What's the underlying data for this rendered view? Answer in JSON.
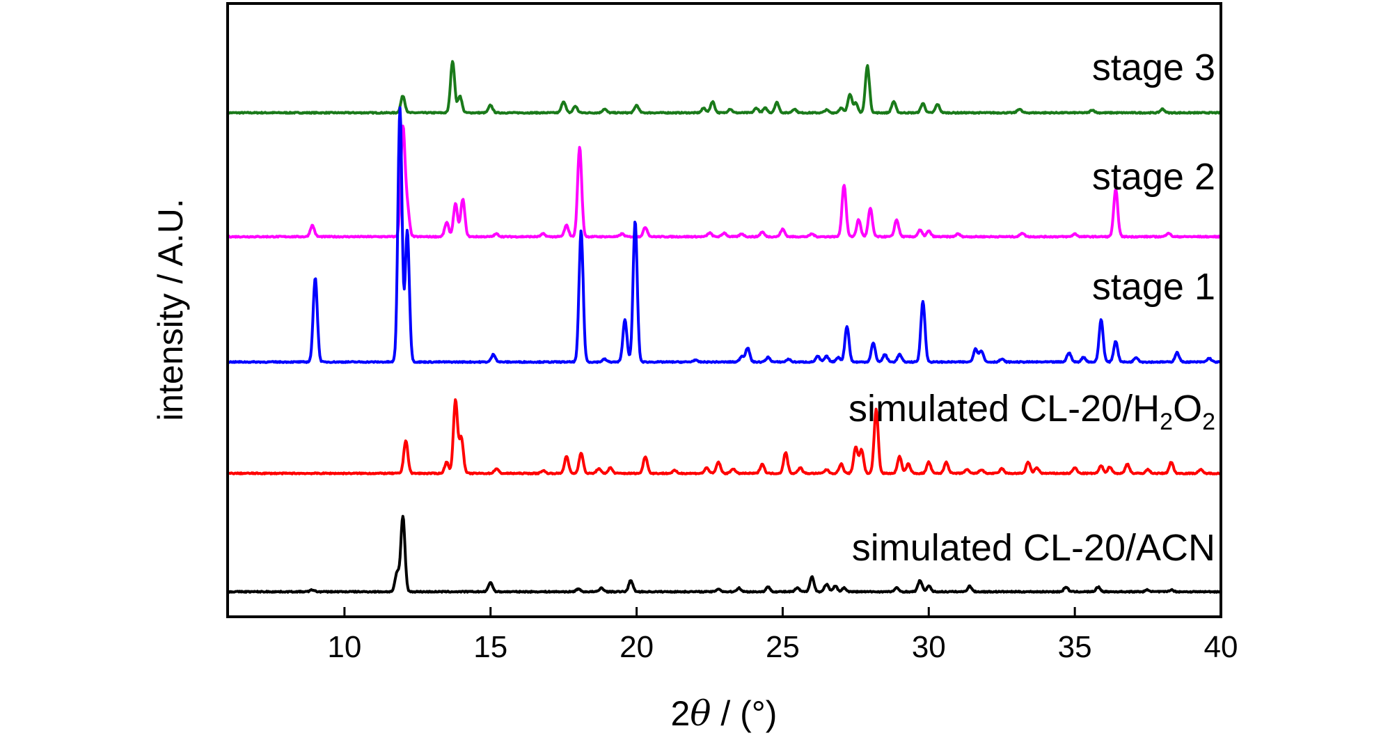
{
  "chart_data": {
    "type": "line",
    "xlabel_main": "2",
    "xlabel_theta": "θ",
    "xlabel_rest": " / (°)",
    "ylabel": "intensity / A.U.",
    "xlim": [
      6,
      40
    ],
    "x_ticks": [
      10,
      15,
      20,
      25,
      30,
      35,
      40
    ],
    "y_ticks_shown": false,
    "grid": false,
    "legend": "inline labels at right, above each trace",
    "series": [
      {
        "name": "stage 3",
        "color": "#1a7a1a",
        "offset": 4,
        "baseline": 0.0,
        "peaks": [
          [
            12.0,
            0.18
          ],
          [
            13.7,
            0.55
          ],
          [
            13.95,
            0.18
          ],
          [
            15.0,
            0.08
          ],
          [
            17.5,
            0.12
          ],
          [
            17.9,
            0.07
          ],
          [
            18.9,
            0.04
          ],
          [
            20.0,
            0.08
          ],
          [
            22.3,
            0.05
          ],
          [
            22.6,
            0.12
          ],
          [
            23.2,
            0.04
          ],
          [
            24.1,
            0.05
          ],
          [
            24.4,
            0.05
          ],
          [
            24.8,
            0.11
          ],
          [
            25.4,
            0.04
          ],
          [
            26.5,
            0.03
          ],
          [
            27.0,
            0.05
          ],
          [
            27.3,
            0.2
          ],
          [
            27.5,
            0.1
          ],
          [
            27.9,
            0.5
          ],
          [
            28.8,
            0.12
          ],
          [
            29.8,
            0.1
          ],
          [
            30.3,
            0.09
          ],
          [
            33.1,
            0.04
          ],
          [
            35.6,
            0.03
          ],
          [
            38.0,
            0.04
          ]
        ]
      },
      {
        "name": "stage 2",
        "color": "#ff00ff",
        "offset": 3,
        "baseline": 0.0,
        "peaks": [
          [
            8.9,
            0.12
          ],
          [
            12.0,
            1.15
          ],
          [
            12.15,
            0.3
          ],
          [
            13.5,
            0.15
          ],
          [
            13.8,
            0.35
          ],
          [
            14.05,
            0.4
          ],
          [
            15.2,
            0.03
          ],
          [
            16.8,
            0.03
          ],
          [
            17.6,
            0.12
          ],
          [
            18.05,
            0.95
          ],
          [
            19.5,
            0.03
          ],
          [
            20.3,
            0.1
          ],
          [
            22.5,
            0.04
          ],
          [
            23.0,
            0.04
          ],
          [
            23.6,
            0.03
          ],
          [
            24.3,
            0.05
          ],
          [
            25.0,
            0.08
          ],
          [
            26.0,
            0.03
          ],
          [
            27.1,
            0.55
          ],
          [
            27.6,
            0.18
          ],
          [
            28.0,
            0.3
          ],
          [
            28.9,
            0.18
          ],
          [
            29.7,
            0.07
          ],
          [
            30.0,
            0.06
          ],
          [
            31.0,
            0.03
          ],
          [
            33.2,
            0.04
          ],
          [
            35.0,
            0.03
          ],
          [
            36.4,
            0.5
          ],
          [
            38.2,
            0.04
          ]
        ]
      },
      {
        "name": "stage 1",
        "color": "#0000ff",
        "offset": 2,
        "baseline": 0.0,
        "peaks": [
          [
            9.0,
            0.9
          ],
          [
            11.9,
            2.7
          ],
          [
            12.15,
            1.4
          ],
          [
            15.1,
            0.08
          ],
          [
            18.1,
            1.4
          ],
          [
            18.9,
            0.03
          ],
          [
            19.6,
            0.45
          ],
          [
            19.95,
            1.5
          ],
          [
            22.0,
            0.02
          ],
          [
            23.6,
            0.06
          ],
          [
            23.8,
            0.15
          ],
          [
            24.5,
            0.05
          ],
          [
            25.2,
            0.03
          ],
          [
            26.2,
            0.06
          ],
          [
            26.5,
            0.06
          ],
          [
            26.9,
            0.05
          ],
          [
            27.2,
            0.38
          ],
          [
            28.1,
            0.2
          ],
          [
            28.5,
            0.08
          ],
          [
            29.0,
            0.08
          ],
          [
            29.8,
            0.65
          ],
          [
            31.6,
            0.14
          ],
          [
            31.8,
            0.12
          ],
          [
            32.5,
            0.03
          ],
          [
            34.8,
            0.1
          ],
          [
            35.3,
            0.05
          ],
          [
            35.9,
            0.45
          ],
          [
            36.4,
            0.22
          ],
          [
            37.1,
            0.05
          ],
          [
            38.5,
            0.1
          ],
          [
            39.6,
            0.04
          ]
        ]
      },
      {
        "name": "simulated CL-20/H2O2",
        "name_prefix": "simulated CL-20/H",
        "name_sub1": "2",
        "name_mid": "O",
        "name_sub2": "2",
        "color": "#ff0000",
        "offset": 1,
        "baseline": 0.0,
        "peaks": [
          [
            12.1,
            0.35
          ],
          [
            13.5,
            0.12
          ],
          [
            13.8,
            0.78
          ],
          [
            14.0,
            0.38
          ],
          [
            15.2,
            0.05
          ],
          [
            16.8,
            0.03
          ],
          [
            17.6,
            0.18
          ],
          [
            18.1,
            0.22
          ],
          [
            18.7,
            0.05
          ],
          [
            19.1,
            0.06
          ],
          [
            20.3,
            0.18
          ],
          [
            21.3,
            0.03
          ],
          [
            22.4,
            0.06
          ],
          [
            22.8,
            0.12
          ],
          [
            23.3,
            0.05
          ],
          [
            24.3,
            0.1
          ],
          [
            25.1,
            0.22
          ],
          [
            25.6,
            0.06
          ],
          [
            26.5,
            0.04
          ],
          [
            27.0,
            0.1
          ],
          [
            27.5,
            0.28
          ],
          [
            27.7,
            0.25
          ],
          [
            28.2,
            0.68
          ],
          [
            29.0,
            0.18
          ],
          [
            29.3,
            0.1
          ],
          [
            30.0,
            0.12
          ],
          [
            30.6,
            0.12
          ],
          [
            31.3,
            0.04
          ],
          [
            31.8,
            0.04
          ],
          [
            32.5,
            0.05
          ],
          [
            33.4,
            0.12
          ],
          [
            33.7,
            0.06
          ],
          [
            35.0,
            0.06
          ],
          [
            35.9,
            0.08
          ],
          [
            36.2,
            0.07
          ],
          [
            36.8,
            0.1
          ],
          [
            37.5,
            0.04
          ],
          [
            38.3,
            0.12
          ],
          [
            39.3,
            0.04
          ]
        ]
      },
      {
        "name": "simulated CL-20/ACN",
        "color": "#000000",
        "offset": 0,
        "baseline": 0.0,
        "peaks": [
          [
            8.9,
            0.02
          ],
          [
            11.8,
            0.2
          ],
          [
            12.0,
            0.8
          ],
          [
            15.0,
            0.1
          ],
          [
            18.0,
            0.03
          ],
          [
            18.8,
            0.04
          ],
          [
            19.8,
            0.12
          ],
          [
            22.8,
            0.03
          ],
          [
            23.5,
            0.04
          ],
          [
            24.5,
            0.05
          ],
          [
            25.5,
            0.04
          ],
          [
            26.0,
            0.16
          ],
          [
            26.5,
            0.08
          ],
          [
            26.8,
            0.06
          ],
          [
            27.1,
            0.04
          ],
          [
            28.9,
            0.04
          ],
          [
            29.7,
            0.12
          ],
          [
            30.0,
            0.06
          ],
          [
            31.4,
            0.06
          ],
          [
            34.7,
            0.05
          ],
          [
            35.8,
            0.05
          ],
          [
            37.5,
            0.02
          ],
          [
            38.3,
            0.02
          ]
        ]
      }
    ]
  }
}
